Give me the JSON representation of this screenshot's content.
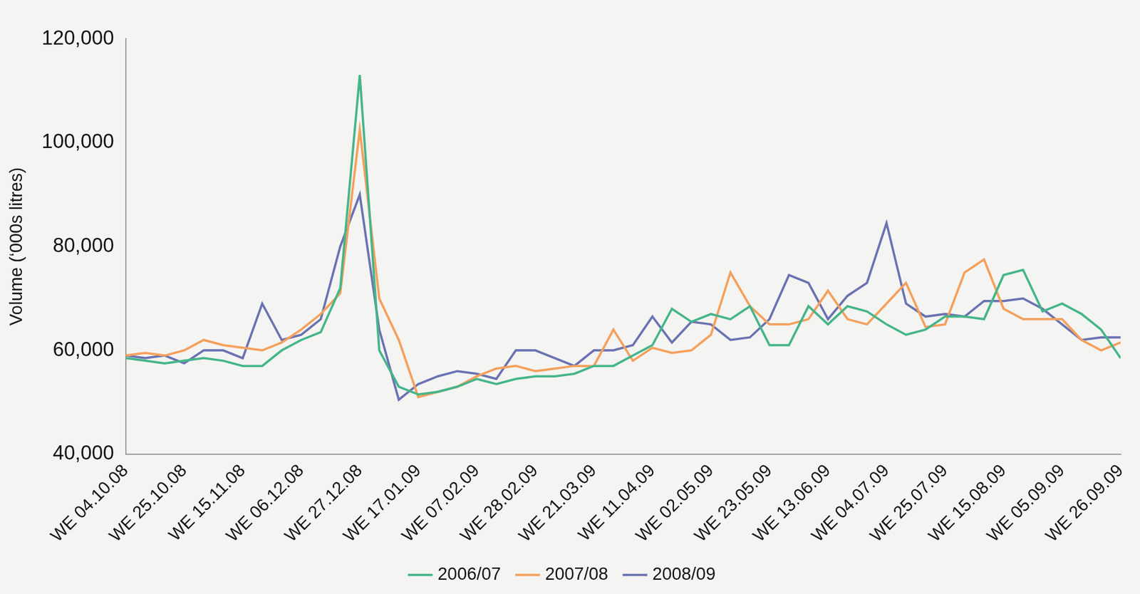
{
  "chart_data": {
    "type": "line",
    "y_label": "Volume (‘000s litres)",
    "categories": [
      "WE 04.10.08",
      null,
      null,
      "WE 25.10.08",
      null,
      null,
      "WE 15.11.08",
      null,
      null,
      "WE 06.12.08",
      null,
      null,
      "WE 27.12.08",
      null,
      null,
      "WE 17.01.09",
      null,
      null,
      "WE 07.02.09",
      null,
      null,
      "WE 28.02.09",
      null,
      null,
      "WE 21.03.09",
      null,
      null,
      "WE 11.04.09",
      null,
      null,
      "WE 02.05.09",
      null,
      null,
      "WE 23.05.09",
      null,
      null,
      "WE 13.06.09",
      null,
      null,
      "WE 04.07.09",
      null,
      null,
      "WE 25.07.09",
      null,
      null,
      "WE 15.08.09",
      null,
      null,
      "WE 05.09.09",
      null,
      null,
      "WE 26.09.09"
    ],
    "series": [
      {
        "name": "2006/07",
        "color": "#45b58a",
        "values": [
          58500,
          58000,
          57500,
          58000,
          58500,
          58000,
          57000,
          57000,
          60000,
          62000,
          63500,
          72000,
          113000,
          60000,
          53000,
          51500,
          52000,
          53000,
          54500,
          53500,
          54500,
          55000,
          55000,
          55500,
          57000,
          57000,
          59000,
          61000,
          68000,
          65500,
          67000,
          66000,
          68500,
          61000,
          61000,
          68500,
          65000,
          68500,
          67500,
          65000,
          63000,
          64000,
          66500,
          66500,
          66000,
          74500,
          75500,
          67500,
          69000,
          67000,
          64000,
          58500
        ]
      },
      {
        "name": "2007/08",
        "color": "#f4a05c",
        "values": [
          59000,
          59500,
          59000,
          60000,
          62000,
          61000,
          60500,
          60000,
          61500,
          64000,
          67000,
          71000,
          102500,
          70000,
          62000,
          51000,
          52000,
          53000,
          55000,
          56500,
          57000,
          56000,
          56500,
          57000,
          57000,
          64000,
          58000,
          60500,
          59500,
          60000,
          63000,
          75000,
          68500,
          65000,
          65000,
          66000,
          71500,
          66000,
          65000,
          69000,
          73000,
          64500,
          65000,
          75000,
          77500,
          68000,
          66000,
          66000,
          66000,
          62000,
          60000,
          61500
        ]
      },
      {
        "name": "2008/09",
        "color": "#6a72b2",
        "values": [
          59000,
          58500,
          59000,
          57500,
          60000,
          60000,
          58500,
          69000,
          62000,
          63000,
          66000,
          80000,
          90000,
          64000,
          50500,
          53500,
          55000,
          56000,
          55500,
          54500,
          60000,
          60000,
          58500,
          57000,
          60000,
          60000,
          61000,
          66500,
          61500,
          65500,
          65000,
          62000,
          62500,
          66000,
          74500,
          73000,
          66000,
          70500,
          73000,
          84500,
          69000,
          66500,
          67000,
          66500,
          69500,
          69500,
          70000,
          68000,
          65000,
          62000,
          62500,
          62500
        ]
      }
    ],
    "ylim": [
      40000,
      120000
    ],
    "yticks": [
      {
        "value": 40000,
        "label": "40,000"
      },
      {
        "value": 60000,
        "label": "60,000"
      },
      {
        "value": 80000,
        "label": "80,000"
      },
      {
        "value": 100000,
        "label": "100,000"
      },
      {
        "value": 120000,
        "label": "120,000"
      }
    ],
    "grid": false,
    "legend": "bottom"
  }
}
